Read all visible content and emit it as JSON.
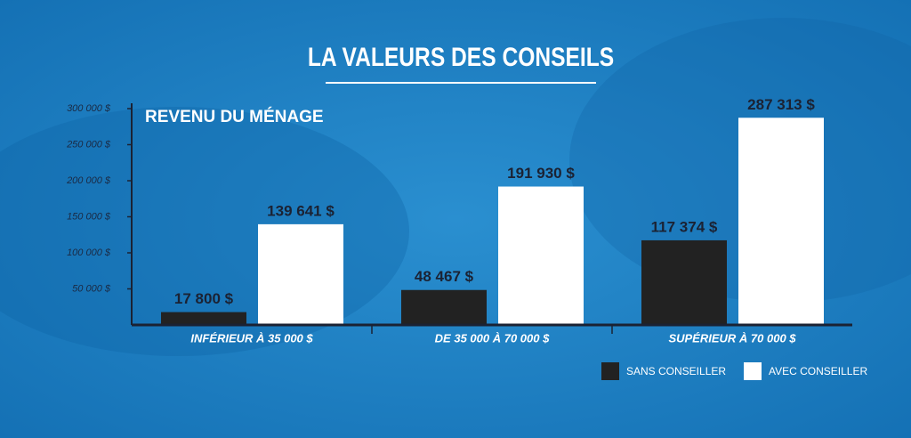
{
  "chart_data": {
    "type": "bar",
    "title": "LA VALEURS DES CONSEILS",
    "y_label": "REVENU DU MÉNAGE",
    "categories": [
      "INFÉRIEUR À 35 000 $",
      "DE 35 000 À 70 000 $",
      "SUPÉRIEUR À 70 000 $"
    ],
    "series": [
      {
        "name": "SANS CONSEILLER",
        "color": "#222222",
        "values": [
          17800,
          48467,
          117374
        ],
        "value_labels": [
          "17 800 $",
          "48 467 $",
          "117 374 $"
        ]
      },
      {
        "name": "AVEC CONSEILLER",
        "color": "#ffffff",
        "values": [
          139641,
          191930,
          287313
        ],
        "value_labels": [
          "139 641 $",
          "191 930 $",
          "287 313 $"
        ]
      }
    ],
    "ylim": [
      0,
      300000
    ],
    "yticks": [
      {
        "value": 50000,
        "label": "50 000 $"
      },
      {
        "value": 100000,
        "label": "100 000 $"
      },
      {
        "value": 150000,
        "label": "150 000 $"
      },
      {
        "value": 200000,
        "label": "200 000 $"
      },
      {
        "value": 250000,
        "label": "250 000 $"
      },
      {
        "value": 300000,
        "label": "300 000 $"
      }
    ],
    "legend": "bottom-right"
  }
}
